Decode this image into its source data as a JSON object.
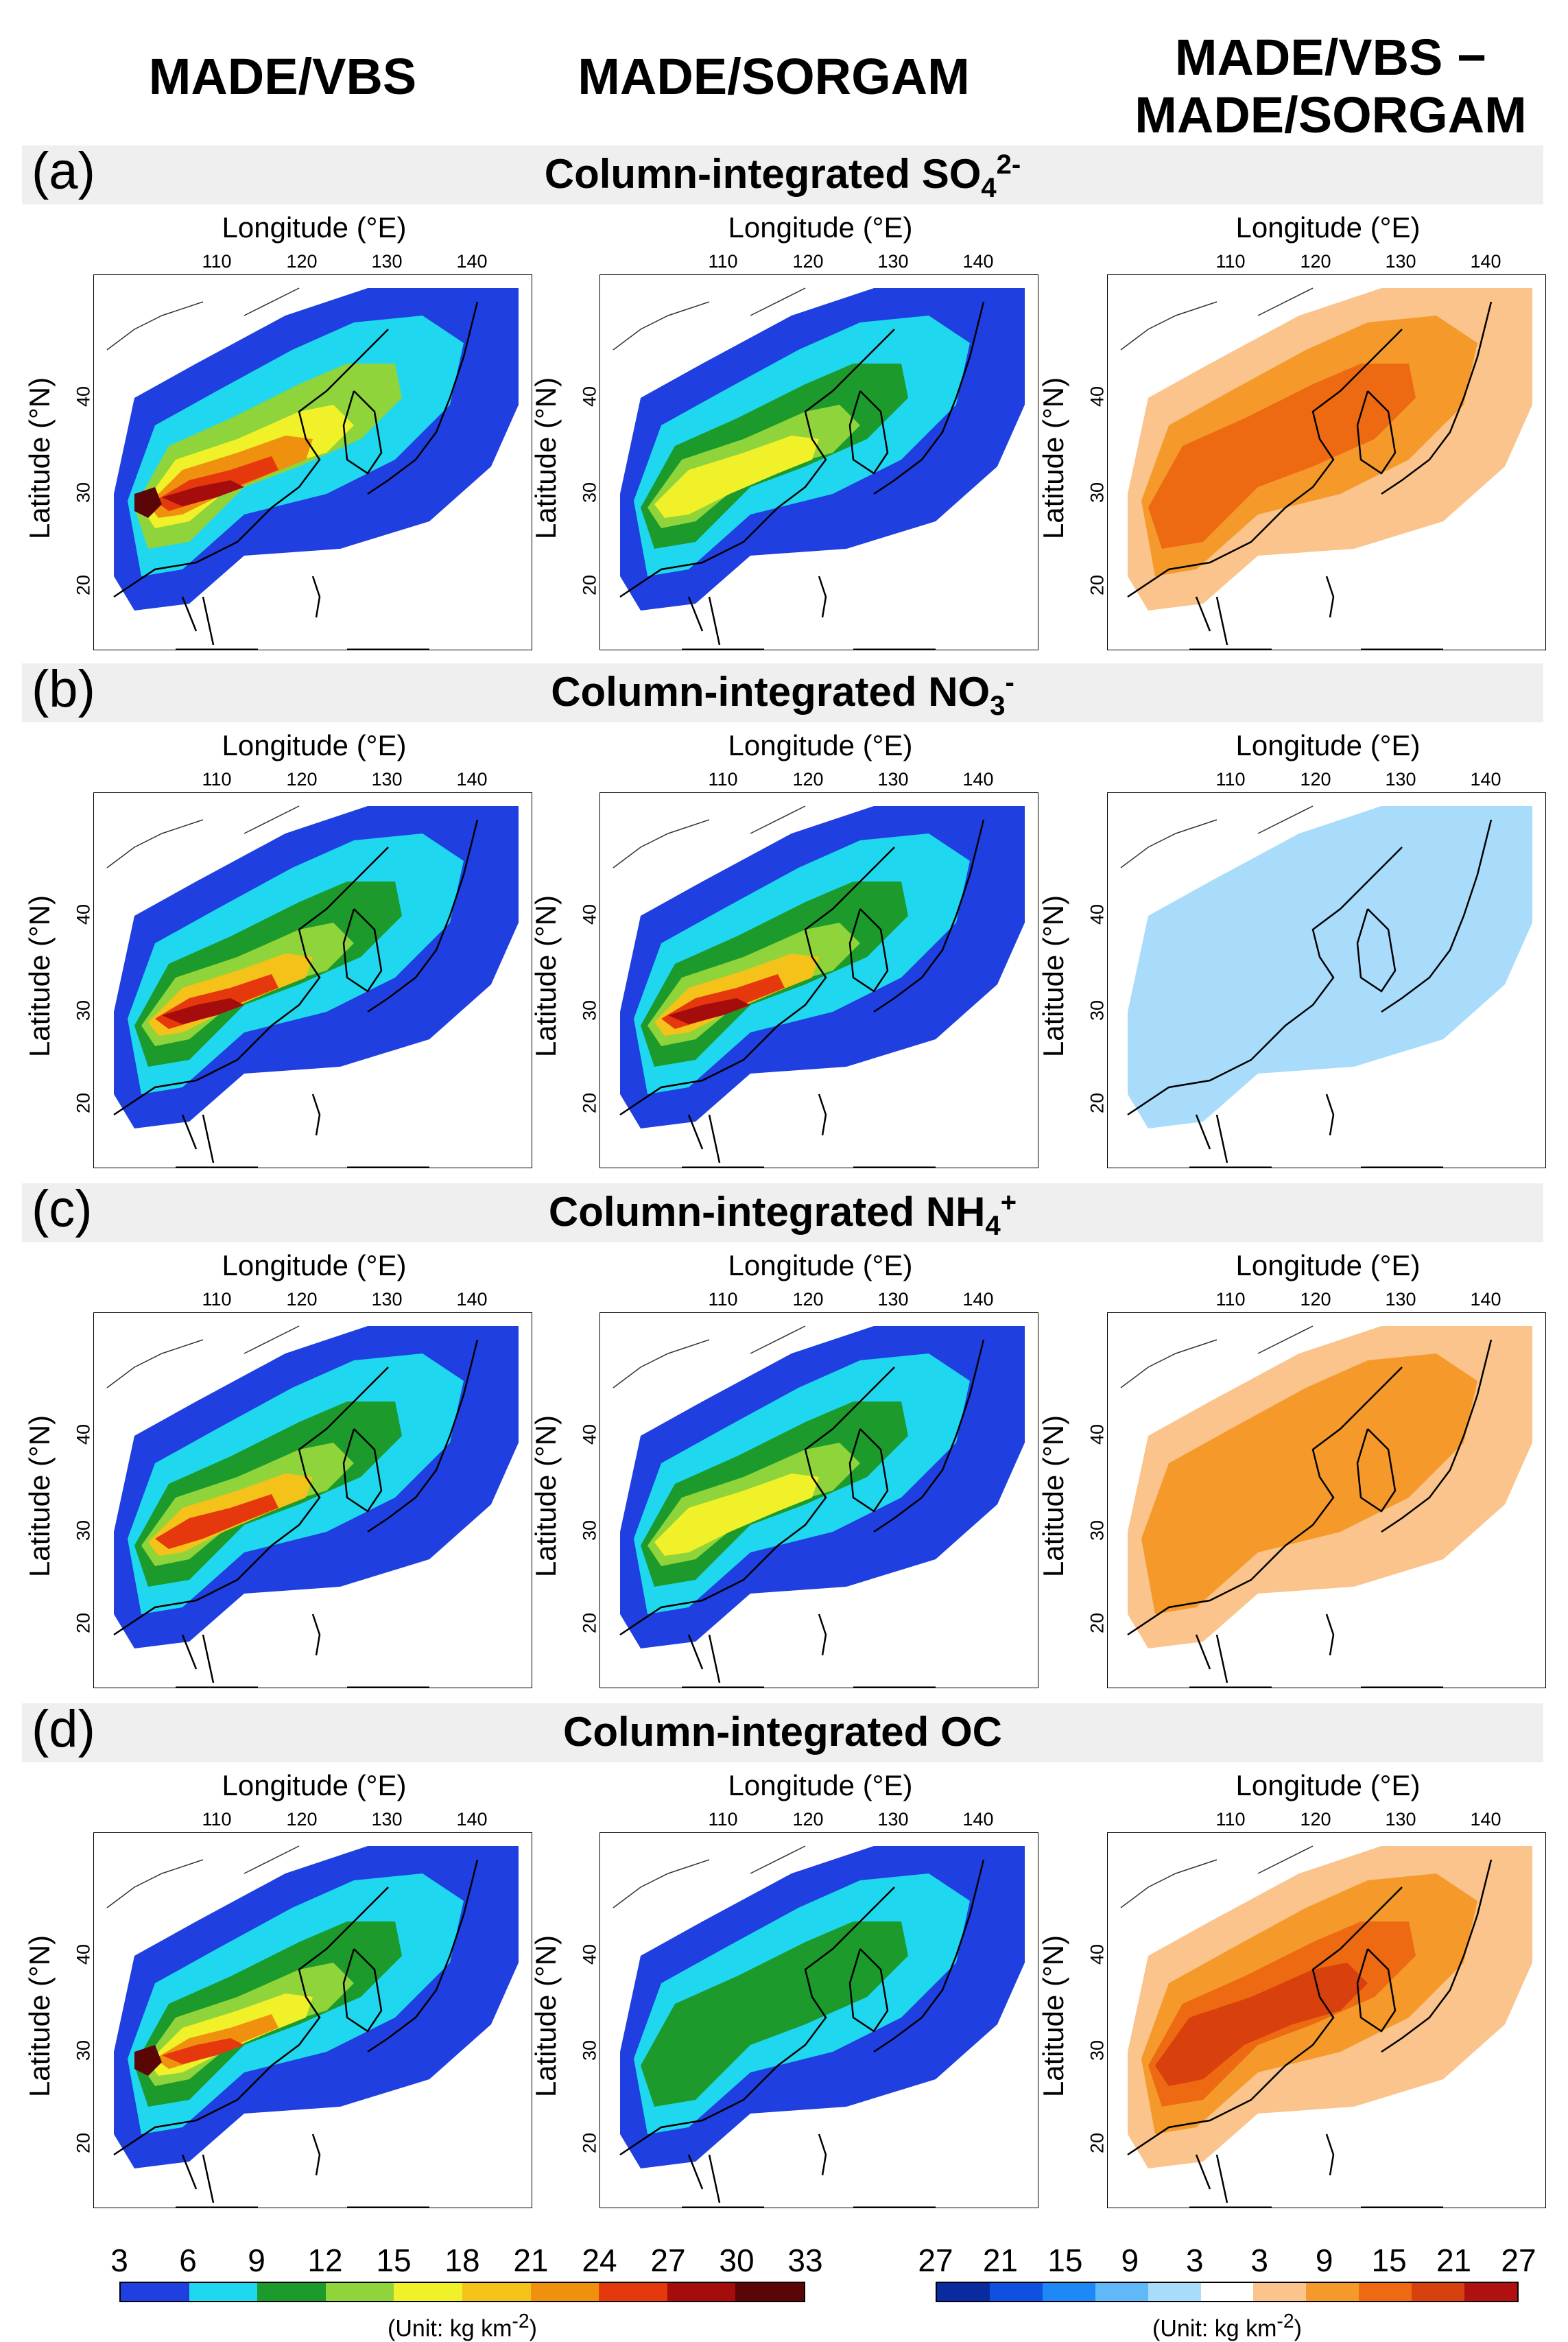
{
  "columns": [
    "MADE/VBS",
    "MADE/SORGAM",
    "MADE/VBS −\nMADE/SORGAM"
  ],
  "column_titles": {
    "vbs": "MADE/VBS",
    "sorgam": "MADE/SORGAM",
    "diff_line1": "MADE/VBS −",
    "diff_line2": "MADE/SORGAM"
  },
  "rows": [
    {
      "letter": "(a)",
      "title_main": "Column-integrated  SO",
      "title_sub": "4",
      "title_sup": "2-"
    },
    {
      "letter": "(b)",
      "title_main": "Column-integrated  NO",
      "title_sub": "3",
      "title_sup": "-"
    },
    {
      "letter": "(c)",
      "title_main": "Column-integrated  NH",
      "title_sub": "4",
      "title_sup": "+"
    },
    {
      "letter": "(d)",
      "title_main": "Column-integrated  OC",
      "title_sub": "",
      "title_sup": ""
    }
  ],
  "axes": {
    "lon_label": "Longitude  (°E)",
    "lat_label": "Latitude  (°N)",
    "lon_ticks": [
      "110",
      "120",
      "130",
      "140"
    ],
    "lat_ticks": [
      "40",
      "30",
      "20"
    ]
  },
  "colorbar_abs": {
    "ticks": [
      "3",
      "6",
      "9",
      "12",
      "15",
      "18",
      "21",
      "24",
      "27",
      "30",
      "33"
    ],
    "colors": [
      "#1f3fe0",
      "#1fd8f0",
      "#1c9a2b",
      "#8fd43a",
      "#f1f12a",
      "#f5c21a",
      "#f0900f",
      "#e5380c",
      "#a50c0c",
      "#5a0606"
    ],
    "unit": "(Unit: kg km",
    "unit_sup": "-2",
    "unit_end": ")"
  },
  "colorbar_diff": {
    "ticks": [
      "27",
      "21",
      "15",
      "9",
      "3",
      "3",
      "9",
      "15",
      "21",
      "27"
    ],
    "colors": [
      "#0a2aa0",
      "#1050e0",
      "#1e88f5",
      "#5fb8f8",
      "#a9dcfb",
      "#ffffff",
      "#fac48c",
      "#f59a2a",
      "#ee6a12",
      "#d8400d",
      "#b01010"
    ],
    "unit": "(Unit: kg km",
    "unit_sup": "-2",
    "unit_end": ")"
  },
  "panel_fields": {
    "a": {
      "vbs": "high",
      "sorgam": "low",
      "diff": "pos_strong"
    },
    "b": {
      "vbs": "mid",
      "sorgam": "mid",
      "diff": "neg_weak"
    },
    "c": {
      "vbs": "midlow",
      "sorgam": "low2",
      "diff": "pos_weak"
    },
    "d": {
      "vbs": "high_oc",
      "sorgam": "vlow",
      "diff": "pos_oc"
    }
  }
}
